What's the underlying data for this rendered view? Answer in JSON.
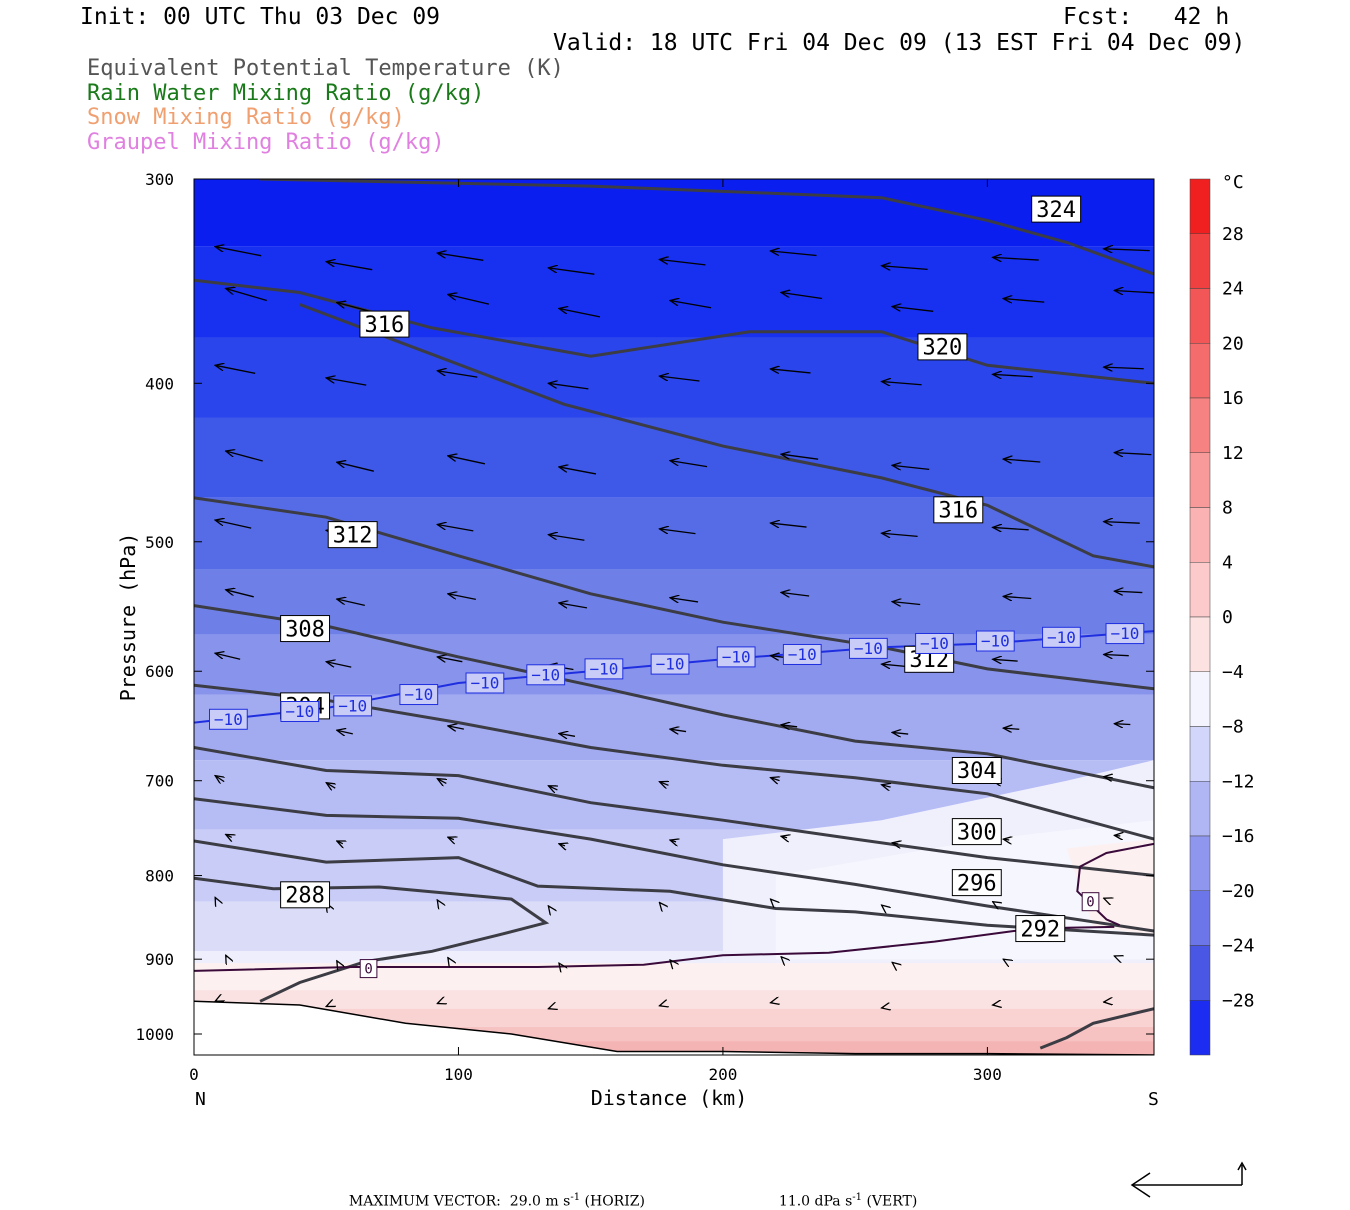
{
  "header": {
    "init": "Init: 00 UTC Thu 03 Dec 09",
    "fcst": "Fcst:   42 h",
    "valid": "Valid: 18 UTC Fri 04 Dec 09 (13 EST Fri 04 Dec 09)"
  },
  "legend": [
    {
      "label": "Equivalent Potential Temperature (K)",
      "color": "#555555"
    },
    {
      "label": "Rain Water Mixing Ratio (g/kg)",
      "color": "#1a7a1a"
    },
    {
      "label": "Snow Mixing Ratio (g/kg)",
      "color": "#f0a070"
    },
    {
      "label": "Graupel Mixing Ratio (g/kg)",
      "color": "#e080e0"
    }
  ],
  "chart_data": {
    "type": "cross-section",
    "xlabel": "Distance (km)",
    "ylabel": "Pressure (hPa)",
    "x_ticks": [
      0,
      100,
      200,
      300
    ],
    "y_ticks": [
      300,
      400,
      500,
      600,
      700,
      800,
      900,
      1000
    ],
    "xlim": [
      0,
      363
    ],
    "ylim": [
      1030,
      300
    ],
    "y_scale": "log",
    "x_end_labels": {
      "left": "N",
      "right": "S"
    },
    "colorbar": {
      "unit": "°C",
      "tick_labels": [
        "28",
        "24",
        "20",
        "16",
        "12",
        "8",
        "4",
        "0",
        "−4",
        "−8",
        "−12",
        "−16",
        "−20",
        "−24",
        "−28"
      ]
    },
    "theta_e_contours": [
      {
        "label": "324",
        "points": [
          [
            25,
            300
          ],
          [
            150,
            303
          ],
          [
            260,
            308
          ],
          [
            300,
            318
          ],
          [
            330,
            328
          ],
          [
            363,
            343
          ]
        ]
      },
      {
        "label": "320",
        "points": [
          [
            0,
            346
          ],
          [
            40,
            352
          ],
          [
            90,
            370
          ],
          [
            150,
            385
          ],
          [
            210,
            372
          ],
          [
            260,
            372
          ],
          [
            300,
            390
          ],
          [
            363,
            400
          ]
        ]
      },
      {
        "label": "316",
        "points": [
          [
            40,
            358
          ],
          [
            90,
            384
          ],
          [
            140,
            412
          ],
          [
            200,
            437
          ],
          [
            260,
            457
          ],
          [
            300,
            475
          ],
          [
            340,
            510
          ],
          [
            363,
            518
          ]
        ]
      },
      {
        "label": "312",
        "points": [
          [
            0,
            470
          ],
          [
            50,
            483
          ],
          [
            100,
            510
          ],
          [
            150,
            538
          ],
          [
            200,
            560
          ],
          [
            260,
            580
          ],
          [
            300,
            598
          ],
          [
            363,
            615
          ]
        ]
      },
      {
        "label": "308",
        "points": [
          [
            0,
            547
          ],
          [
            50,
            563
          ],
          [
            100,
            588
          ],
          [
            150,
            612
          ],
          [
            200,
            638
          ],
          [
            250,
            662
          ],
          [
            300,
            674
          ],
          [
            363,
            707
          ]
        ]
      },
      {
        "label": "304",
        "points": [
          [
            0,
            612
          ],
          [
            50,
            625
          ],
          [
            100,
            645
          ],
          [
            150,
            668
          ],
          [
            200,
            685
          ],
          [
            250,
            697
          ],
          [
            300,
            713
          ],
          [
            363,
            760
          ]
        ]
      },
      {
        "label": "300",
        "points": [
          [
            0,
            668
          ],
          [
            50,
            690
          ],
          [
            100,
            695
          ],
          [
            150,
            722
          ],
          [
            200,
            740
          ],
          [
            250,
            760
          ],
          [
            300,
            780
          ],
          [
            363,
            800
          ]
        ]
      },
      {
        "label": "296",
        "points": [
          [
            0,
            718
          ],
          [
            50,
            735
          ],
          [
            100,
            738
          ],
          [
            150,
            760
          ],
          [
            200,
            788
          ],
          [
            250,
            810
          ],
          [
            300,
            835
          ],
          [
            363,
            865
          ]
        ]
      },
      {
        "label": "292",
        "points": [
          [
            0,
            762
          ],
          [
            50,
            785
          ],
          [
            100,
            780
          ],
          [
            130,
            812
          ],
          [
            180,
            818
          ],
          [
            220,
            838
          ],
          [
            250,
            842
          ],
          [
            300,
            858
          ],
          [
            363,
            870
          ]
        ]
      },
      {
        "label": "288",
        "points": [
          [
            0,
            803
          ],
          [
            30,
            815
          ],
          [
            70,
            813
          ],
          [
            120,
            827
          ],
          [
            133,
            855
          ],
          [
            115,
            870
          ],
          [
            90,
            890
          ],
          [
            65,
            903
          ],
          [
            40,
            930
          ],
          [
            25,
            955
          ]
        ]
      },
      {
        "label": "",
        "points": [
          [
            320,
            1020
          ],
          [
            330,
            1005
          ],
          [
            340,
            985
          ],
          [
            363,
            965
          ]
        ]
      }
    ],
    "zero_isotherm": {
      "label": "0",
      "points": [
        [
          0,
          915
        ],
        [
          60,
          910
        ],
        [
          130,
          910
        ],
        [
          170,
          907
        ],
        [
          200,
          895
        ],
        [
          240,
          892
        ],
        [
          280,
          878
        ],
        [
          310,
          865
        ],
        [
          330,
          861
        ],
        [
          348,
          860
        ]
      ]
    },
    "zero_isotherm_warm_pocket": {
      "label": "0",
      "points": [
        [
          363,
          765
        ],
        [
          345,
          775
        ],
        [
          335,
          790
        ],
        [
          334,
          818
        ],
        [
          345,
          851
        ],
        [
          350,
          858
        ]
      ]
    },
    "minus10_isotherm": {
      "label": "−10",
      "points": [
        [
          0,
          645
        ],
        [
          50,
          632
        ],
        [
          100,
          610
        ],
        [
          150,
          600
        ],
        [
          200,
          590
        ],
        [
          260,
          580
        ],
        [
          300,
          577
        ],
        [
          363,
          567
        ]
      ]
    },
    "ground_surface": {
      "points": [
        [
          0,
          955
        ],
        [
          40,
          960
        ],
        [
          80,
          985
        ],
        [
          120,
          1000
        ],
        [
          160,
          1025
        ],
        [
          200,
          1025
        ],
        [
          250,
          1028
        ],
        [
          300,
          1028
        ],
        [
          363,
          1030
        ]
      ]
    },
    "max_vector": {
      "horiz_label": "MAXIMUM VECTOR:  29.0 m s",
      "horiz_suffix": " (HORIZ)",
      "vert_label": "11.0 dPa s",
      "vert_suffix": " (VERT)",
      "exponent": "-1"
    }
  }
}
